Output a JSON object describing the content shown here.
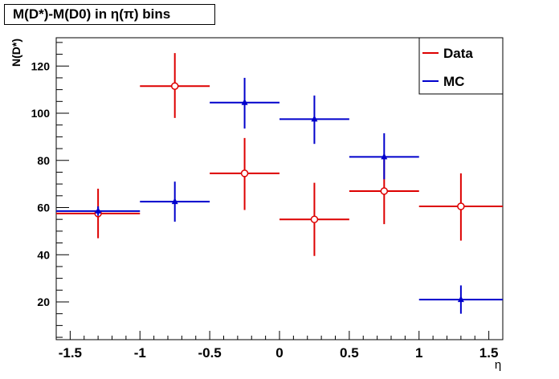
{
  "chart_data": {
    "type": "scatter",
    "title": "M(D*)-M(D0) in η(π) bins",
    "xlabel": "η",
    "ylabel": "N(D*)",
    "xlim": [
      -1.6,
      1.6
    ],
    "ylim": [
      4,
      132
    ],
    "x_ticks": [
      -1.5,
      -1,
      -0.5,
      0,
      0.5,
      1,
      1.5
    ],
    "x_tick_labels": [
      "-1.5",
      "-1",
      "-0.5",
      "0",
      "0.5",
      "1",
      "1.5"
    ],
    "y_ticks": [
      20,
      40,
      60,
      80,
      100,
      120
    ],
    "y_tick_labels": [
      "20",
      "40",
      "60",
      "80",
      "100",
      "120"
    ],
    "grid": false,
    "legend": "top-right",
    "series": [
      {
        "name": "Data",
        "color": "#dd0000",
        "marker": "open-circle",
        "points": [
          {
            "x": -1.3,
            "y": 57.5,
            "xlo": -1.6,
            "xhi": -1.0,
            "ylo": 47,
            "yhi": 68
          },
          {
            "x": -0.75,
            "y": 111.5,
            "xlo": -1.0,
            "xhi": -0.5,
            "ylo": 98,
            "yhi": 125.5
          },
          {
            "x": -0.25,
            "y": 74.5,
            "xlo": -0.5,
            "xhi": 0.0,
            "ylo": 59,
            "yhi": 89.5
          },
          {
            "x": 0.25,
            "y": 55,
            "xlo": 0.0,
            "xhi": 0.5,
            "ylo": 39.5,
            "yhi": 70.5
          },
          {
            "x": 0.75,
            "y": 67,
            "xlo": 0.5,
            "xhi": 1.0,
            "ylo": 53,
            "yhi": 81.5
          },
          {
            "x": 1.3,
            "y": 60.5,
            "xlo": 1.0,
            "xhi": 1.6,
            "ylo": 46,
            "yhi": 74.5
          }
        ]
      },
      {
        "name": "MC",
        "color": "#0000cc",
        "marker": "triangle",
        "points": [
          {
            "x": -1.3,
            "y": 58.5,
            "xlo": -1.6,
            "xhi": -1.0,
            "ylo": 56.5,
            "yhi": 60.5
          },
          {
            "x": -0.75,
            "y": 62.5,
            "xlo": -1.0,
            "xhi": -0.5,
            "ylo": 54,
            "yhi": 71
          },
          {
            "x": -0.25,
            "y": 104.5,
            "xlo": -0.5,
            "xhi": 0.0,
            "ylo": 93.5,
            "yhi": 115
          },
          {
            "x": 0.25,
            "y": 97.5,
            "xlo": 0.0,
            "xhi": 0.5,
            "ylo": 87,
            "yhi": 107.5
          },
          {
            "x": 0.75,
            "y": 81.5,
            "xlo": 0.5,
            "xhi": 1.0,
            "ylo": 72,
            "yhi": 91.5
          },
          {
            "x": 1.3,
            "y": 21,
            "xlo": 1.0,
            "xhi": 1.6,
            "ylo": 15,
            "yhi": 27
          }
        ]
      }
    ]
  }
}
